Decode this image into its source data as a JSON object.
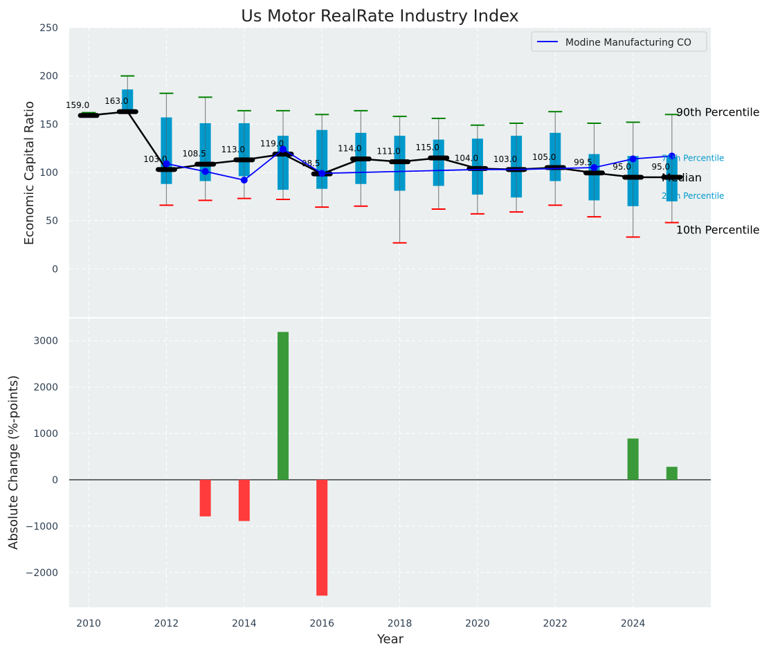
{
  "chart_data": [
    {
      "type": "box",
      "title": "Us Motor RealRate Industry Index",
      "xlabel": "",
      "ylabel": "Economic Capital Ratio",
      "xlim": [
        2009.5,
        2026
      ],
      "ylim": [
        -50,
        250
      ],
      "yticks": [
        0,
        50,
        100,
        150,
        200,
        250
      ],
      "grid": true,
      "legend": {
        "placement": "top-right",
        "entries": [
          "Modine Manufacturing CO"
        ]
      },
      "years": [
        2010,
        2011,
        2012,
        2013,
        2014,
        2015,
        2016,
        2017,
        2018,
        2019,
        2020,
        2021,
        2022,
        2023,
        2024,
        2025
      ],
      "p10": [
        null,
        null,
        66,
        71,
        73,
        72,
        64,
        65,
        27,
        62,
        57,
        59,
        66,
        54,
        33,
        48
      ],
      "p25": [
        null,
        null,
        88,
        91,
        96,
        82,
        83,
        88,
        81,
        86,
        77,
        74,
        91,
        71,
        65,
        70
      ],
      "median": [
        159,
        163,
        103,
        108.5,
        113,
        119,
        98.5,
        114,
        111,
        115,
        104,
        103,
        105,
        99.5,
        95,
        95
      ],
      "p75": [
        null,
        186,
        157,
        151,
        151,
        138,
        144,
        141,
        138,
        134,
        135,
        138,
        141,
        119,
        117,
        116
      ],
      "p90": [
        162,
        200,
        182,
        178,
        164,
        164,
        160,
        164,
        158,
        156,
        149,
        151,
        163,
        151,
        152,
        160
      ],
      "median_labels": [
        "159.0",
        "163.0",
        "103.0",
        "108.5",
        "113.0",
        "119.0",
        "98.5",
        "114.0",
        "111.0",
        "115.0",
        "104.0",
        "103.0",
        "105.0",
        "99.5",
        "95.0",
        "95.0"
      ],
      "company": {
        "name": "Modine Manufacturing CO",
        "years": [
          2012,
          2013,
          2014,
          2015,
          2016,
          2017,
          2018,
          2019,
          2020,
          2021,
          2022,
          2023,
          2024,
          2025
        ],
        "values": [
          109,
          101,
          92,
          124,
          99,
          100,
          101,
          102,
          103,
          103,
          104,
          105,
          114,
          117
        ],
        "markers_years": [
          2012,
          2013,
          2014,
          2015,
          2016,
          2023,
          2024,
          2025
        ]
      },
      "annotations": {
        "p90": "90th Percentile",
        "p75": "75th Percentile",
        "median": "Median",
        "p25": "25th Percentile",
        "p10": "10th Percentile"
      },
      "colors": {
        "box": "#0099cc",
        "median": "#000000",
        "company": "#0000ff",
        "p90": "#008000",
        "p10": "#ff0000",
        "bg": "#ebeff0"
      }
    },
    {
      "type": "bar",
      "xlabel": "Year",
      "ylabel": "Absolute Change (%-points)",
      "ylim": [
        -2750,
        3480
      ],
      "yticks": [
        -2000,
        -1000,
        0,
        1000,
        2000,
        3000
      ],
      "ytick_labels": [
        "−2000",
        "−1000",
        "0",
        "1000",
        "2000",
        "3000"
      ],
      "xticks": [
        2010,
        2012,
        2014,
        2016,
        2018,
        2020,
        2022,
        2024
      ],
      "years": [
        2013,
        2014,
        2015,
        2016,
        2024,
        2025
      ],
      "values": [
        -790,
        -890,
        3190,
        -2500,
        890,
        280
      ],
      "colors": {
        "positive": "#3a9a3a",
        "negative": "#ff3b3b"
      }
    }
  ]
}
